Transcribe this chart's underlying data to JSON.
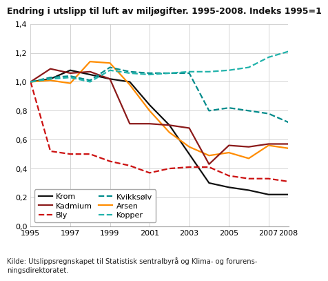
{
  "title": "Endring i utslipp til luft av miljøgifter. 1995-2008. Indeks 1995=1",
  "years": [
    1995,
    1996,
    1997,
    1998,
    1999,
    2000,
    2001,
    2002,
    2003,
    2004,
    2005,
    2006,
    2007,
    2008
  ],
  "series": {
    "Krom": {
      "values": [
        1.0,
        1.02,
        1.08,
        1.05,
        1.02,
        1.0,
        0.84,
        0.7,
        0.5,
        0.3,
        0.27,
        0.25,
        0.22,
        0.22
      ],
      "color": "#111111",
      "linestyle": "solid",
      "linewidth": 1.6
    },
    "Bly": {
      "values": [
        1.0,
        0.52,
        0.5,
        0.5,
        0.45,
        0.42,
        0.37,
        0.4,
        0.41,
        0.41,
        0.35,
        0.33,
        0.33,
        0.31
      ],
      "color": "#cc1111",
      "linestyle": "dashed",
      "linewidth": 1.6
    },
    "Arsen": {
      "values": [
        1.0,
        1.01,
        0.99,
        1.14,
        1.13,
        0.98,
        0.8,
        0.65,
        0.55,
        0.49,
        0.51,
        0.47,
        0.56,
        0.54
      ],
      "color": "#ff8c00",
      "linestyle": "solid",
      "linewidth": 1.6
    },
    "Kadmium": {
      "values": [
        1.0,
        1.09,
        1.06,
        1.07,
        1.02,
        0.71,
        0.71,
        0.7,
        0.68,
        0.43,
        0.56,
        0.55,
        0.57,
        0.57
      ],
      "color": "#8b1a1a",
      "linestyle": "solid",
      "linewidth": 1.6
    },
    "Kvikksølv": {
      "values": [
        1.0,
        1.03,
        1.04,
        1.01,
        1.1,
        1.07,
        1.06,
        1.06,
        1.06,
        0.8,
        0.82,
        0.8,
        0.78,
        0.72
      ],
      "color": "#008b8b",
      "linestyle": "dashed",
      "linewidth": 1.6
    },
    "Kopper": {
      "values": [
        1.0,
        1.02,
        1.03,
        1.0,
        1.08,
        1.06,
        1.05,
        1.06,
        1.07,
        1.07,
        1.08,
        1.1,
        1.17,
        1.21
      ],
      "color": "#20b2aa",
      "linestyle": "dashed",
      "linewidth": 1.6
    }
  },
  "ylim": [
    0.0,
    1.4
  ],
  "yticks": [
    0.0,
    0.2,
    0.4,
    0.6,
    0.8,
    1.0,
    1.2,
    1.4
  ],
  "xticks": [
    1995,
    1997,
    1999,
    2001,
    2003,
    2005,
    2007,
    2008
  ],
  "legend_order": [
    "Krom",
    "Kadmium",
    "Bly",
    "Kvikksølv",
    "Arsen",
    "Kopper"
  ],
  "source_text": "Kilde: Utslippsregnskapet til Statistisk sentralbyrå og Klima- og forurens-\nningsdirektoratet.",
  "grid_color": "#cccccc"
}
